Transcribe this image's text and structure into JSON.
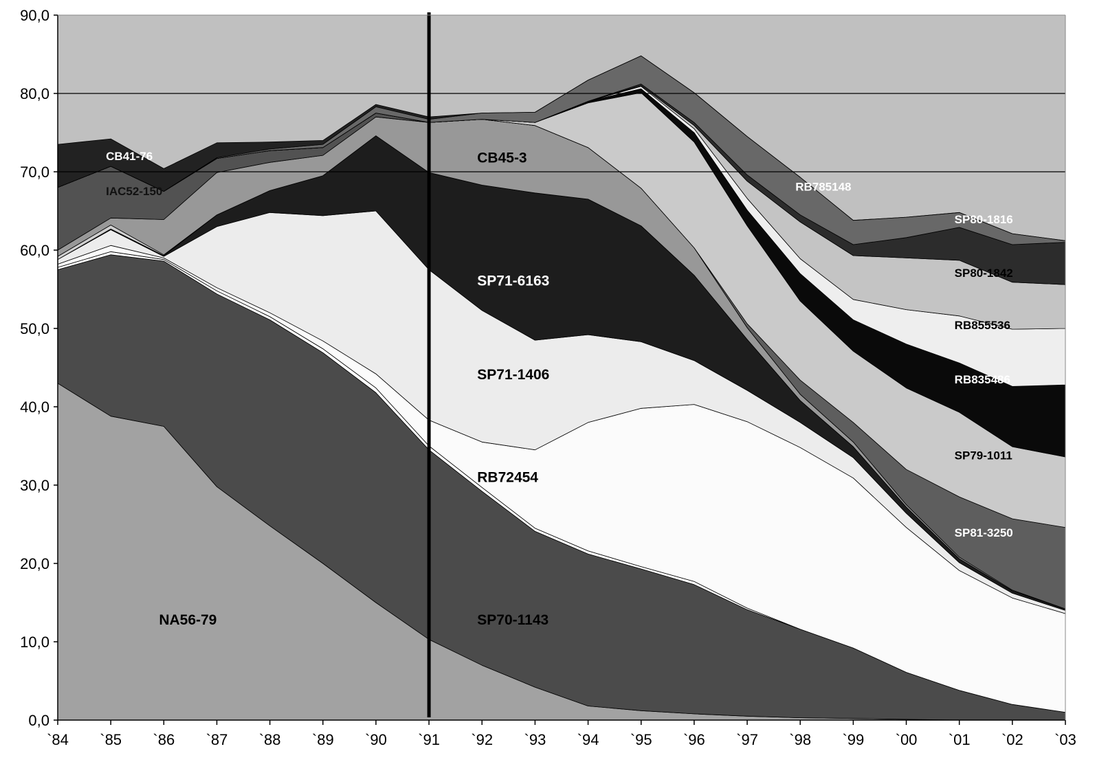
{
  "chart_data": {
    "type": "area",
    "stacked": true,
    "x": [
      "`84",
      "`85",
      "`86",
      "`87",
      "`88",
      "`89",
      "`90",
      "`91",
      "`92",
      "`93",
      "`94",
      "`95",
      "`96",
      "`97",
      "`98",
      "`99",
      "`00",
      "`01",
      "`02",
      "`03"
    ],
    "ylim": [
      0,
      90
    ],
    "y_ticks": [
      "0,0",
      "10,0",
      "20,0",
      "30,0",
      "40,0",
      "50,0",
      "60,0",
      "70,0",
      "80,0",
      "90,0"
    ],
    "grid": "horizontal lines at 70 and 80",
    "background_color": "#c0c0c0",
    "vertical_marker_x": "`91",
    "series": [
      {
        "name": "NA56-79",
        "color": "#a2a2a2",
        "values": [
          43.0,
          38.8,
          37.5,
          29.8,
          24.8,
          20.0,
          15.0,
          10.3,
          7.0,
          4.2,
          1.8,
          1.2,
          0.8,
          0.5,
          0.3,
          0.2,
          0.1,
          0.0,
          0.0,
          0.0
        ]
      },
      {
        "name": "SP70-1143",
        "color": "#4b4b4b",
        "values": [
          14.5,
          20.6,
          21.1,
          24.6,
          26.3,
          26.9,
          26.8,
          24.2,
          22.2,
          19.9,
          19.4,
          18.1,
          16.5,
          13.6,
          11.3,
          9.0,
          6.0,
          3.8,
          2.0,
          1.0
        ]
      },
      {
        "name": "",
        "color": "#ffffff",
        "values": [
          0.3,
          0.4,
          0.2,
          0.4,
          0.4,
          0.5,
          0.6,
          0.5,
          0.5,
          0.4,
          0.4,
          0.3,
          0.4,
          0.2,
          0.0,
          0.0,
          0.0,
          0.0,
          0.0,
          0.0
        ]
      },
      {
        "name": "RB72454",
        "color": "#fbfbfb",
        "values": [
          0.4,
          0.8,
          0.2,
          0.4,
          0.5,
          1.0,
          1.8,
          3.3,
          5.8,
          10.0,
          16.4,
          20.2,
          22.6,
          23.8,
          23.2,
          21.7,
          18.5,
          15.3,
          13.6,
          12.6
        ]
      },
      {
        "name": "SP71-1406",
        "color": "#ececec",
        "values": [
          0.6,
          2.0,
          0.2,
          7.8,
          12.8,
          16.0,
          20.8,
          19.2,
          16.8,
          14.0,
          11.2,
          8.5,
          5.6,
          4.0,
          3.2,
          2.6,
          1.8,
          1.0,
          0.6,
          0.4
        ]
      },
      {
        "name": "SP71-6163",
        "color": "#1d1d1d",
        "values": [
          0.0,
          0.1,
          0.1,
          1.5,
          2.8,
          5.1,
          9.6,
          12.4,
          16.0,
          18.8,
          17.3,
          14.8,
          10.9,
          6.5,
          2.8,
          1.4,
          0.8,
          0.5,
          0.3,
          0.2
        ]
      },
      {
        "name": "",
        "color": "#cfcfcf",
        "values": [
          0.4,
          0.5,
          0.1,
          0.0,
          0.0,
          0.0,
          0.0,
          0.0,
          0.0,
          0.0,
          0.0,
          0.0,
          0.0,
          0.0,
          0.0,
          0.0,
          0.0,
          0.0,
          0.0,
          0.0
        ]
      },
      {
        "name": "CB45-3",
        "color": "#989898",
        "values": [
          0.8,
          0.9,
          4.5,
          5.4,
          3.6,
          2.6,
          2.4,
          6.4,
          8.4,
          8.6,
          6.6,
          4.8,
          3.5,
          1.5,
          0.8,
          0.6,
          0.3,
          0.2,
          0.1,
          0.0
        ]
      },
      {
        "name": "IAC52-150",
        "color": "#525252",
        "values": [
          8.0,
          6.6,
          3.6,
          1.8,
          1.5,
          1.0,
          0.5,
          0.0,
          0.0,
          0.0,
          0.0,
          0.0,
          0.0,
          0.0,
          0.0,
          0.0,
          0.0,
          0.0,
          0.0,
          0.0
        ]
      },
      {
        "name": "SP81-3250",
        "color": "#5e5e5e",
        "values": [
          0.0,
          0.0,
          0.0,
          0.0,
          0.0,
          0.0,
          0.0,
          0.0,
          0.0,
          0.0,
          0.0,
          0.0,
          0.0,
          0.5,
          1.8,
          2.5,
          4.5,
          7.7,
          9.1,
          10.4
        ]
      },
      {
        "name": "SP79-1011",
        "color": "#cacaca",
        "values": [
          0.0,
          0.0,
          0.0,
          0.0,
          0.0,
          0.0,
          0.0,
          0.0,
          0.0,
          0.4,
          5.7,
          12.2,
          13.5,
          12.5,
          10.1,
          9.1,
          10.4,
          10.8,
          9.2,
          9.0
        ]
      },
      {
        "name": "RB835486",
        "color": "#0a0a0a",
        "values": [
          0.0,
          0.0,
          0.0,
          0.0,
          0.0,
          0.0,
          0.0,
          0.0,
          0.0,
          0.0,
          0.2,
          0.5,
          1.2,
          2.0,
          3.5,
          4.0,
          5.6,
          6.3,
          7.7,
          9.2
        ]
      },
      {
        "name": "RB855536",
        "color": "#eeeeee",
        "values": [
          0.0,
          0.0,
          0.0,
          0.0,
          0.0,
          0.0,
          0.0,
          0.0,
          0.0,
          0.0,
          0.0,
          0.3,
          0.5,
          1.5,
          1.9,
          2.6,
          4.4,
          6.0,
          7.3,
          7.2
        ]
      },
      {
        "name": "SP80-1842",
        "color": "#c4c4c4",
        "values": [
          0.0,
          0.0,
          0.0,
          0.0,
          0.0,
          0.0,
          0.0,
          0.0,
          0.0,
          0.0,
          0.0,
          0.1,
          0.4,
          2.2,
          4.7,
          5.6,
          6.6,
          7.1,
          6.0,
          5.6
        ]
      },
      {
        "name": "SP80-1816",
        "color": "#2c2c2c",
        "values": [
          0.0,
          0.0,
          0.0,
          0.0,
          0.0,
          0.0,
          0.0,
          0.0,
          0.0,
          0.0,
          0.0,
          0.2,
          0.4,
          0.8,
          0.9,
          1.4,
          2.6,
          4.2,
          4.8,
          5.4
        ]
      },
      {
        "name": "RB785148",
        "color": "#686868",
        "values": [
          0.0,
          0.0,
          0.0,
          0.1,
          0.2,
          0.4,
          0.8,
          0.4,
          0.8,
          1.3,
          2.7,
          3.6,
          3.8,
          4.9,
          4.8,
          3.1,
          2.6,
          1.9,
          1.4,
          0.2
        ]
      },
      {
        "name": "CB41-76",
        "color": "#222222",
        "values": [
          5.5,
          3.5,
          2.9,
          1.9,
          0.9,
          0.5,
          0.3,
          0.3,
          0.0,
          0.0,
          0.0,
          0.0,
          0.0,
          0.0,
          0.0,
          0.0,
          0.0,
          0.0,
          0.0,
          0.0
        ]
      }
    ],
    "labels": [
      {
        "text": "CB41-76",
        "series": "CB41-76",
        "x": "`85",
        "y": 71.5,
        "color": "#ffffff",
        "bold": true,
        "size": 17
      },
      {
        "text": "IAC52-150",
        "series": "IAC52-150",
        "x": "`85",
        "y": 67.0,
        "color": "#111111",
        "bold": false,
        "size": 17
      },
      {
        "text": "CB45-3",
        "series": "CB45-3",
        "x": "`92",
        "y": 71.2,
        "color": "#000000",
        "bold": true,
        "size": 21
      },
      {
        "text": "RB785148",
        "series": "RB785148",
        "x": "`98",
        "y": 67.6,
        "color": "#ffffff",
        "bold": true,
        "size": 17
      },
      {
        "text": "SP80-1816",
        "series": "SP80-1816",
        "x": "`01",
        "y": 63.4,
        "color": "#ffffff",
        "bold": true,
        "size": 17
      },
      {
        "text": "SP80-1842",
        "series": "SP80-1842",
        "x": "`01",
        "y": 56.6,
        "color": "#000000",
        "bold": true,
        "size": 17
      },
      {
        "text": "RB855536",
        "series": "RB855536",
        "x": "`01",
        "y": 49.9,
        "color": "#000000",
        "bold": true,
        "size": 17
      },
      {
        "text": "RB835486",
        "series": "RB835486",
        "x": "`01",
        "y": 43.0,
        "color": "#ffffff",
        "bold": true,
        "size": 17
      },
      {
        "text": "SP79-1011",
        "series": "SP79-1011",
        "x": "`01",
        "y": 33.3,
        "color": "#000000",
        "bold": true,
        "size": 17
      },
      {
        "text": "SP81-3250",
        "series": "SP81-3250",
        "x": "`01",
        "y": 23.4,
        "color": "#ffffff",
        "bold": true,
        "size": 17
      },
      {
        "text": "SP71-6163",
        "series": "SP71-6163",
        "x": "`92",
        "y": 55.5,
        "color": "#ffffff",
        "bold": true,
        "size": 21
      },
      {
        "text": "SP71-1406",
        "series": "SP71-1406",
        "x": "`92",
        "y": 43.5,
        "color": "#000000",
        "bold": true,
        "size": 21
      },
      {
        "text": "RB72454",
        "series": "RB72454",
        "x": "`92",
        "y": 30.4,
        "color": "#000000",
        "bold": true,
        "size": 21
      },
      {
        "text": "SP70-1143",
        "series": "SP70-1143",
        "x": "`92",
        "y": 12.2,
        "color": "#000000",
        "bold": true,
        "size": 21
      },
      {
        "text": "NA56-79",
        "series": "NA56-79",
        "x": "`86",
        "y": 12.2,
        "color": "#000000",
        "bold": true,
        "size": 21
      }
    ],
    "title": "",
    "xlabel": "",
    "ylabel": ""
  }
}
